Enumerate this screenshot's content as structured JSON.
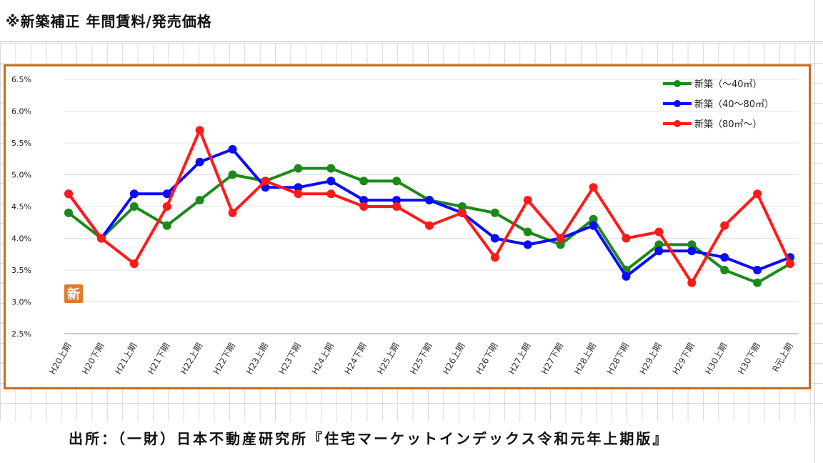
{
  "heading": "※新築補正 年間賃料/発売価格",
  "footer": "出所：（一財）日本不動産研究所『住宅マーケットインデックス令和元年上期版』",
  "badge": "新",
  "colors": {
    "frame": "#c96a1e",
    "badge": "#e07a2e",
    "green": "#1a8a1a",
    "blue": "#0a0aff",
    "red": "#ff1a1a"
  },
  "chart_data": {
    "type": "line",
    "categories": [
      "H20上期",
      "H20下期",
      "H21上期",
      "H21下期",
      "H22上期",
      "H22下期",
      "H23上期",
      "H23下期",
      "H24上期",
      "H24下期",
      "H25上期",
      "H25下期",
      "H26上期",
      "H26下期",
      "H27上期",
      "H27下期",
      "H28上期",
      "H28下期",
      "H29上期",
      "H29下期",
      "H30上期",
      "H30下期",
      "R元上期"
    ],
    "yticks": [
      "2.5%",
      "3.0%",
      "3.5%",
      "4.0%",
      "4.5%",
      "5.0%",
      "5.5%",
      "6.0%",
      "6.5%"
    ],
    "ylim": [
      2.5,
      6.5
    ],
    "legend_position": "top-right",
    "series": [
      {
        "name": "新築（～40㎡）",
        "color": "#1a8a1a",
        "values": [
          4.4,
          4.0,
          4.5,
          4.2,
          4.6,
          5.0,
          4.9,
          5.1,
          5.1,
          4.9,
          4.9,
          4.6,
          4.5,
          4.4,
          4.1,
          3.9,
          4.3,
          3.5,
          3.9,
          3.9,
          3.5,
          3.3,
          3.6
        ]
      },
      {
        "name": "新築（40～80㎡）",
        "color": "#0a0aff",
        "values": [
          4.7,
          4.0,
          4.7,
          4.7,
          5.2,
          5.4,
          4.8,
          4.8,
          4.9,
          4.6,
          4.6,
          4.6,
          4.4,
          4.0,
          3.9,
          4.0,
          4.2,
          3.4,
          3.8,
          3.8,
          3.7,
          3.5,
          3.7
        ]
      },
      {
        "name": "新築（80㎡～）",
        "color": "#ff1a1a",
        "values": [
          4.7,
          4.0,
          3.6,
          4.5,
          5.7,
          4.4,
          4.9,
          4.7,
          4.7,
          4.5,
          4.5,
          4.2,
          4.4,
          3.7,
          4.6,
          4.0,
          4.8,
          4.0,
          4.1,
          3.3,
          4.2,
          4.7,
          3.6
        ]
      }
    ]
  }
}
